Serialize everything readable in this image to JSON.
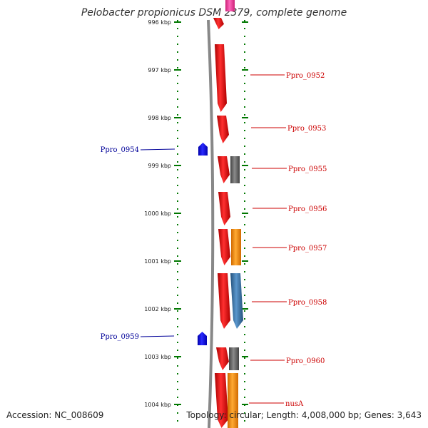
{
  "title": "Pelobacter propionicus DSM 2379, complete genome",
  "accession": "Accession: NC_008609",
  "topology": "Topology: circular; Length: 4,008,000 bp; Genes: 3,643",
  "ruler": {
    "unit": "kbp",
    "ticks": [
      {
        "label": "996 kbp"
      },
      {
        "label": "997 kbp"
      },
      {
        "label": "998 kbp"
      },
      {
        "label": "999 kbp"
      },
      {
        "label": "1000 kbp"
      },
      {
        "label": "1001 kbp"
      },
      {
        "label": "1002 kbp"
      },
      {
        "label": "1003 kbp"
      },
      {
        "label": "1004 kbp"
      }
    ]
  },
  "colors": {
    "forward_cds": "#ee0000",
    "reverse_cds": "#0000ee",
    "gray_feature": "#666666",
    "orange_feature": "#ff8c00",
    "blue_feature": "#3a78b0",
    "pink_feature": "#ff44aa",
    "ruler_green": "#007700",
    "backbone": "#888888",
    "forward_label": "#cc0000",
    "reverse_label": "#000099"
  },
  "features": [
    {
      "label": "",
      "strand": "forward"
    },
    {
      "label": "Ppro_0952",
      "strand": "forward"
    },
    {
      "label": "Ppro_0953",
      "strand": "forward"
    },
    {
      "label": "Ppro_0954",
      "strand": "reverse"
    },
    {
      "label": "Ppro_0955",
      "strand": "forward",
      "companion": "gray"
    },
    {
      "label": "Ppro_0956",
      "strand": "forward"
    },
    {
      "label": "Ppro_0957",
      "strand": "forward",
      "companion": "orange"
    },
    {
      "label": "Ppro_0958",
      "strand": "forward",
      "companion": "blue"
    },
    {
      "label": "Ppro_0959",
      "strand": "reverse"
    },
    {
      "label": "Ppro_0960",
      "strand": "forward",
      "companion": "gray"
    },
    {
      "label": "nusA",
      "strand": "forward",
      "companion": "orange"
    }
  ]
}
